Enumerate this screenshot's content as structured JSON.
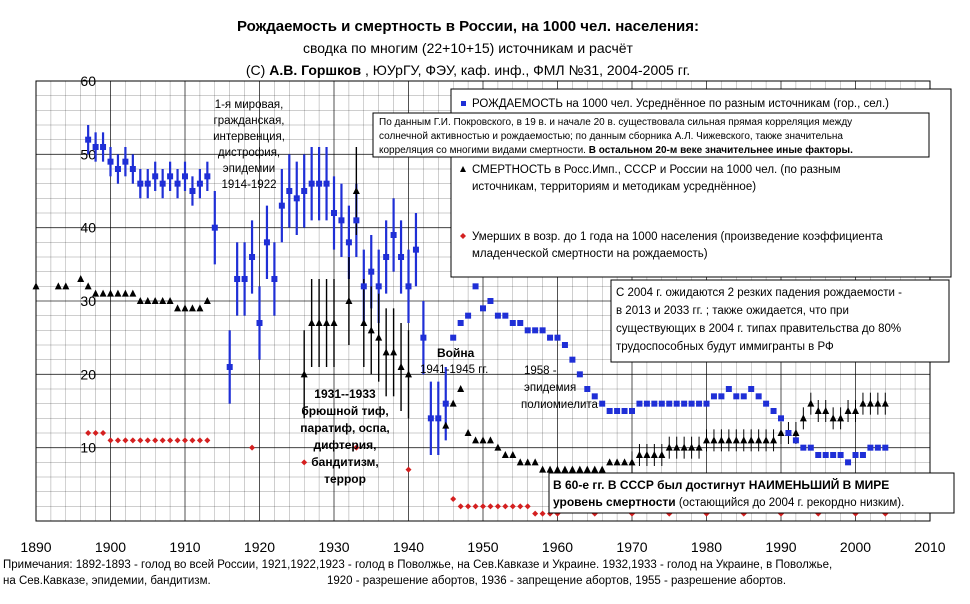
{
  "title": {
    "line1": "Рождаемость и смертность в России, на 1000 чел. населения:",
    "line2": "сводка по многим (22+10+15) источникам и расчёт",
    "line3_a": "(С) ",
    "line3_b": "А.В. Горшков",
    "line3_c": " , ЮУрГУ, ФЭУ, каф. инф., ФМЛ №31, 2004-2005 гг."
  },
  "colors": {
    "births": "#1f2fd6",
    "deaths": "#000000",
    "infant": "#d42020",
    "grid": "#000000"
  },
  "chart_data": {
    "type": "scatter",
    "xlim": [
      1890,
      2010
    ],
    "ylim": [
      0,
      60
    ],
    "xticks": [
      1890,
      1900,
      1910,
      1920,
      1930,
      1940,
      1950,
      1960,
      1970,
      1980,
      1990,
      2000,
      2010
    ],
    "yticks": [
      10,
      20,
      30,
      40,
      50,
      60
    ],
    "series": [
      {
        "name": "births",
        "marker": "square",
        "points": [
          [
            1897,
            52
          ],
          [
            1898,
            51
          ],
          [
            1899,
            51
          ],
          [
            1900,
            49
          ],
          [
            1901,
            48
          ],
          [
            1902,
            49
          ],
          [
            1903,
            48
          ],
          [
            1904,
            46
          ],
          [
            1905,
            46
          ],
          [
            1906,
            47
          ],
          [
            1907,
            46
          ],
          [
            1908,
            47
          ],
          [
            1909,
            46
          ],
          [
            1910,
            47
          ],
          [
            1911,
            45
          ],
          [
            1912,
            46
          ],
          [
            1913,
            47
          ],
          [
            1914,
            40
          ],
          [
            1916,
            21
          ],
          [
            1917,
            33
          ],
          [
            1918,
            33
          ],
          [
            1919,
            36
          ],
          [
            1920,
            27
          ],
          [
            1921,
            38
          ],
          [
            1922,
            33
          ],
          [
            1923,
            43
          ],
          [
            1924,
            45
          ],
          [
            1925,
            44
          ],
          [
            1926,
            45
          ],
          [
            1927,
            46
          ],
          [
            1928,
            46
          ],
          [
            1929,
            46
          ],
          [
            1930,
            42
          ],
          [
            1931,
            41
          ],
          [
            1932,
            38
          ],
          [
            1933,
            41
          ],
          [
            1934,
            32
          ],
          [
            1935,
            34
          ],
          [
            1936,
            32
          ],
          [
            1937,
            36
          ],
          [
            1938,
            39
          ],
          [
            1939,
            36
          ],
          [
            1940,
            32
          ],
          [
            1941,
            37
          ],
          [
            1942,
            25
          ],
          [
            1943,
            14
          ],
          [
            1944,
            14
          ],
          [
            1945,
            16
          ],
          [
            1946,
            25
          ],
          [
            1947,
            27
          ],
          [
            1948,
            28
          ],
          [
            1949,
            32
          ],
          [
            1950,
            29
          ],
          [
            1951,
            30
          ],
          [
            1952,
            28
          ],
          [
            1953,
            28
          ],
          [
            1954,
            27
          ],
          [
            1955,
            27
          ],
          [
            1956,
            26
          ],
          [
            1957,
            26
          ],
          [
            1958,
            26
          ],
          [
            1959,
            25
          ],
          [
            1960,
            25
          ],
          [
            1961,
            24
          ],
          [
            1962,
            22
          ],
          [
            1963,
            20
          ],
          [
            1964,
            18
          ],
          [
            1965,
            17
          ],
          [
            1966,
            16
          ],
          [
            1967,
            15
          ],
          [
            1968,
            15
          ],
          [
            1969,
            15
          ],
          [
            1970,
            15
          ],
          [
            1971,
            16
          ],
          [
            1972,
            16
          ],
          [
            1973,
            16
          ],
          [
            1974,
            16
          ],
          [
            1975,
            16
          ],
          [
            1976,
            16
          ],
          [
            1977,
            16
          ],
          [
            1978,
            16
          ],
          [
            1979,
            16
          ],
          [
            1980,
            16
          ],
          [
            1981,
            17
          ],
          [
            1982,
            17
          ],
          [
            1983,
            18
          ],
          [
            1984,
            17
          ],
          [
            1985,
            17
          ],
          [
            1986,
            18
          ],
          [
            1987,
            17
          ],
          [
            1988,
            16
          ],
          [
            1989,
            15
          ],
          [
            1990,
            14
          ],
          [
            1991,
            12
          ],
          [
            1992,
            11
          ],
          [
            1993,
            10
          ],
          [
            1994,
            10
          ],
          [
            1995,
            9
          ],
          [
            1996,
            9
          ],
          [
            1997,
            9
          ],
          [
            1998,
            9
          ],
          [
            1999,
            8
          ],
          [
            2000,
            9
          ],
          [
            2001,
            9
          ],
          [
            2002,
            10
          ],
          [
            2003,
            10
          ],
          [
            2004,
            10
          ]
        ]
      },
      {
        "name": "deaths",
        "marker": "triangle",
        "points": [
          [
            1890,
            32
          ],
          [
            1893,
            32
          ],
          [
            1894,
            32
          ],
          [
            1896,
            33
          ],
          [
            1897,
            32
          ],
          [
            1898,
            31
          ],
          [
            1899,
            31
          ],
          [
            1900,
            31
          ],
          [
            1901,
            31
          ],
          [
            1902,
            31
          ],
          [
            1903,
            31
          ],
          [
            1904,
            30
          ],
          [
            1905,
            30
          ],
          [
            1906,
            30
          ],
          [
            1907,
            30
          ],
          [
            1908,
            30
          ],
          [
            1909,
            29
          ],
          [
            1910,
            29
          ],
          [
            1911,
            29
          ],
          [
            1912,
            29
          ],
          [
            1913,
            30
          ],
          [
            1926,
            20
          ],
          [
            1927,
            27
          ],
          [
            1928,
            27
          ],
          [
            1929,
            27
          ],
          [
            1930,
            27
          ],
          [
            1932,
            30
          ],
          [
            1933,
            45
          ],
          [
            1934,
            27
          ],
          [
            1935,
            26
          ],
          [
            1936,
            25
          ],
          [
            1937,
            23
          ],
          [
            1938,
            23
          ],
          [
            1939,
            21
          ],
          [
            1940,
            20
          ],
          [
            1945,
            13
          ],
          [
            1946,
            16
          ],
          [
            1947,
            18
          ],
          [
            1948,
            12
          ],
          [
            1949,
            11
          ],
          [
            1950,
            11
          ],
          [
            1951,
            11
          ],
          [
            1952,
            10
          ],
          [
            1953,
            9
          ],
          [
            1954,
            9
          ],
          [
            1955,
            8
          ],
          [
            1956,
            8
          ],
          [
            1957,
            8
          ],
          [
            1958,
            7
          ],
          [
            1959,
            7
          ],
          [
            1960,
            7
          ],
          [
            1961,
            7
          ],
          [
            1962,
            7
          ],
          [
            1963,
            7
          ],
          [
            1964,
            7
          ],
          [
            1965,
            7
          ],
          [
            1966,
            7
          ],
          [
            1967,
            8
          ],
          [
            1968,
            8
          ],
          [
            1969,
            8
          ],
          [
            1970,
            8
          ],
          [
            1971,
            9
          ],
          [
            1972,
            9
          ],
          [
            1973,
            9
          ],
          [
            1974,
            9
          ],
          [
            1975,
            10
          ],
          [
            1976,
            10
          ],
          [
            1977,
            10
          ],
          [
            1978,
            10
          ],
          [
            1979,
            10
          ],
          [
            1980,
            11
          ],
          [
            1981,
            11
          ],
          [
            1982,
            11
          ],
          [
            1983,
            11
          ],
          [
            1984,
            11
          ],
          [
            1985,
            11
          ],
          [
            1986,
            11
          ],
          [
            1987,
            11
          ],
          [
            1988,
            11
          ],
          [
            1989,
            11
          ],
          [
            1990,
            12
          ],
          [
            1991,
            12
          ],
          [
            1992,
            12
          ],
          [
            1993,
            14
          ],
          [
            1994,
            16
          ],
          [
            1995,
            15
          ],
          [
            1996,
            15
          ],
          [
            1997,
            14
          ],
          [
            1998,
            14
          ],
          [
            1999,
            15
          ],
          [
            2000,
            15
          ],
          [
            2001,
            16
          ],
          [
            2002,
            16
          ],
          [
            2003,
            16
          ],
          [
            2004,
            16
          ]
        ]
      },
      {
        "name": "infant",
        "marker": "diamond",
        "points": [
          [
            1897,
            12
          ],
          [
            1898,
            12
          ],
          [
            1899,
            12
          ],
          [
            1900,
            11
          ],
          [
            1901,
            11
          ],
          [
            1902,
            11
          ],
          [
            1903,
            11
          ],
          [
            1904,
            11
          ],
          [
            1905,
            11
          ],
          [
            1906,
            11
          ],
          [
            1907,
            11
          ],
          [
            1908,
            11
          ],
          [
            1909,
            11
          ],
          [
            1910,
            11
          ],
          [
            1911,
            11
          ],
          [
            1912,
            11
          ],
          [
            1913,
            11
          ],
          [
            1919,
            10
          ],
          [
            1926,
            8
          ],
          [
            1933,
            10
          ],
          [
            1940,
            7
          ],
          [
            1946,
            3
          ],
          [
            1947,
            2
          ],
          [
            1948,
            2
          ],
          [
            1949,
            2
          ],
          [
            1950,
            2
          ],
          [
            1951,
            2
          ],
          [
            1952,
            2
          ],
          [
            1953,
            2
          ],
          [
            1954,
            2
          ],
          [
            1955,
            2
          ],
          [
            1956,
            2
          ],
          [
            1957,
            1
          ],
          [
            1958,
            1
          ],
          [
            1959,
            1
          ],
          [
            1960,
            1
          ],
          [
            1965,
            1
          ],
          [
            1970,
            1
          ],
          [
            1975,
            1
          ],
          [
            1980,
            1
          ],
          [
            1985,
            1
          ],
          [
            1990,
            1
          ],
          [
            1995,
            1
          ],
          [
            2000,
            1
          ],
          [
            2004,
            1
          ]
        ]
      }
    ]
  },
  "annotations": {
    "ww1": [
      "1-я мировая,",
      "гражданская,",
      "интервенция,",
      "дистрофия,",
      "эпидемии",
      "1914-1922"
    ],
    "famine": [
      "1931--1933",
      "брюшной тиф,",
      "паратиф, оспа,",
      "дифтерия,",
      "бандитизм,",
      "террор"
    ],
    "war_a": "Война",
    "war_b": "1941-1945 гг.",
    "epid": [
      "1958 -",
      "эпидемия",
      "полиомиелита"
    ]
  },
  "legend": {
    "births": "РОЖДАЕМОСТЬ на 1000 чел. Усреднённое по разным источникам (гор., сел.)",
    "deaths_1": "СМЕРТНОСТЬ в Росс.Имп., СССР и России на 1000 чел. (по разным",
    "deaths_2": "источникам, территориям и  методикам усреднённое)",
    "infant_1": "Умерших в возр. до 1 года на 1000 населения (произведение коэффициента",
    "infant_2": "младенческой смертности на рождаемость)"
  },
  "pokrovsky": {
    "l1": "По данным Г.И. Покровского, в 19 в. и начале 20 в. существовала сильная прямая корреляция между",
    "l2": "солнечной активностью и рождаемостью; по данным сборника А.Л. Чижевского, также значительна",
    "l3": "корреляция со многими видами смертности.",
    "l3b": " В остальном 20-м  веке значительнее иные факторы."
  },
  "forecast": [
    "С 2004 г. ожидаются 2 резких падения рождаемости -",
    "в 2013 и 2033 гг. ; также ожидается, что при",
    "существующих в 2004 г. типах правительства до 80%",
    "трудоспособных будут иммигранты в РФ"
  ],
  "ussr": {
    "l1": "В 60-е гг. В СССР был достигнут НАИМЕНЬШИЙ В МИРЕ",
    "l2a": "уровень смертности",
    "l2b": " (остающийся до 2004 г. рекордно низким)."
  },
  "notes": {
    "l1": "Примечания: 1892-1893 - голод во всей России, 1921,1922,1923 - голод в Поволжье, на Сев.Кавказе и Украине. 1932,1933 - голод на Украине, в Поволжье,",
    "l2a": "на Сев.Кавказе, эпидемии, бандитизм.",
    "l2b": "1920 - разрешение абортов, 1936 - запрещение абортов, 1955 - разрешение абортов."
  }
}
